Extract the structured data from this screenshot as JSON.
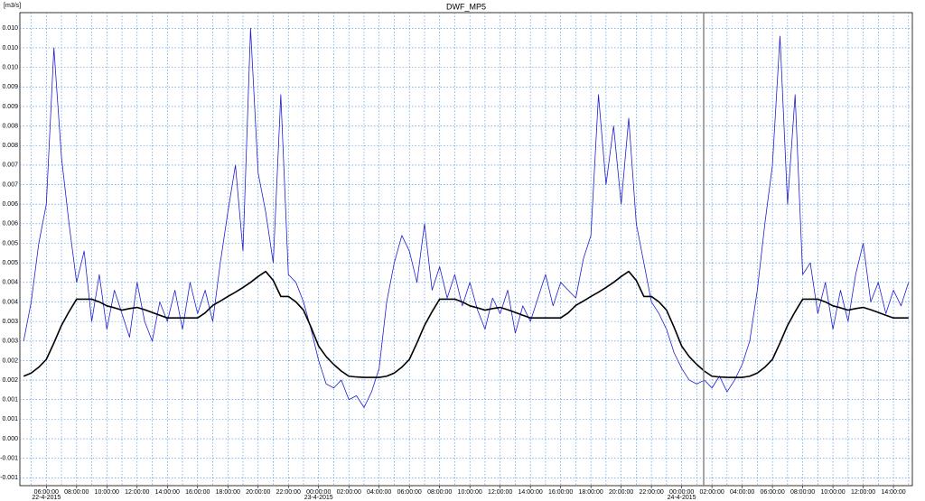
{
  "chart_data": {
    "type": "line",
    "title": "DWF_MP5",
    "ylabel": "[m3/s]",
    "x": [
      "2015-04-22 04:30",
      "2015-04-22 05:00",
      "2015-04-22 05:30",
      "2015-04-22 06:00",
      "2015-04-22 06:30",
      "2015-04-22 07:00",
      "2015-04-22 07:30",
      "2015-04-22 08:00",
      "2015-04-22 08:30",
      "2015-04-22 09:00",
      "2015-04-22 09:30",
      "2015-04-22 10:00",
      "2015-04-22 10:30",
      "2015-04-22 11:00",
      "2015-04-22 11:30",
      "2015-04-22 12:00",
      "2015-04-22 12:30",
      "2015-04-22 13:00",
      "2015-04-22 13:30",
      "2015-04-22 14:00",
      "2015-04-22 14:30",
      "2015-04-22 15:00",
      "2015-04-22 15:30",
      "2015-04-22 16:00",
      "2015-04-22 16:30",
      "2015-04-22 17:00",
      "2015-04-22 17:30",
      "2015-04-22 18:00",
      "2015-04-22 18:30",
      "2015-04-22 19:00",
      "2015-04-22 19:30",
      "2015-04-22 20:00",
      "2015-04-22 20:30",
      "2015-04-22 21:00",
      "2015-04-22 21:30",
      "2015-04-22 22:00",
      "2015-04-22 22:30",
      "2015-04-22 23:00",
      "2015-04-22 23:30",
      "2015-04-23 00:00",
      "2015-04-23 00:30",
      "2015-04-23 01:00",
      "2015-04-23 01:30",
      "2015-04-23 02:00",
      "2015-04-23 02:30",
      "2015-04-23 03:00",
      "2015-04-23 03:30",
      "2015-04-23 04:00",
      "2015-04-23 04:30",
      "2015-04-23 05:00",
      "2015-04-23 05:30",
      "2015-04-23 06:00",
      "2015-04-23 06:30",
      "2015-04-23 07:00",
      "2015-04-23 07:30",
      "2015-04-23 08:00",
      "2015-04-23 08:30",
      "2015-04-23 09:00",
      "2015-04-23 09:30",
      "2015-04-23 10:00",
      "2015-04-23 10:30",
      "2015-04-23 11:00",
      "2015-04-23 11:30",
      "2015-04-23 12:00",
      "2015-04-23 12:30",
      "2015-04-23 13:00",
      "2015-04-23 13:30",
      "2015-04-23 14:00",
      "2015-04-23 14:30",
      "2015-04-23 15:00",
      "2015-04-23 15:30",
      "2015-04-23 16:00",
      "2015-04-23 16:30",
      "2015-04-23 17:00",
      "2015-04-23 17:30",
      "2015-04-23 18:00",
      "2015-04-23 18:30",
      "2015-04-23 19:00",
      "2015-04-23 19:30",
      "2015-04-23 20:00",
      "2015-04-23 20:30",
      "2015-04-23 21:00",
      "2015-04-23 21:30",
      "2015-04-23 22:00",
      "2015-04-23 22:30",
      "2015-04-23 23:00",
      "2015-04-23 23:30",
      "2015-04-24 00:00",
      "2015-04-24 00:30",
      "2015-04-24 01:00",
      "2015-04-24 01:30",
      "2015-04-24 02:00",
      "2015-04-24 02:30",
      "2015-04-24 03:00",
      "2015-04-24 03:30",
      "2015-04-24 04:00",
      "2015-04-24 04:30",
      "2015-04-24 05:00",
      "2015-04-24 05:30",
      "2015-04-24 06:00",
      "2015-04-24 06:30",
      "2015-04-24 07:00",
      "2015-04-24 07:30",
      "2015-04-24 08:00",
      "2015-04-24 08:30",
      "2015-04-24 09:00",
      "2015-04-24 09:30",
      "2015-04-24 10:00",
      "2015-04-24 10:30",
      "2015-04-24 11:00",
      "2015-04-24 11:30",
      "2015-04-24 12:00",
      "2015-04-24 12:30",
      "2015-04-24 13:00",
      "2015-04-24 13:30",
      "2015-04-24 14:00",
      "2015-04-24 14:30",
      "2015-04-24 15:00"
    ],
    "series": [
      {
        "color": "#1f1fd0",
        "width": 0.8,
        "values": [
          0.0025,
          0.0035,
          0.005,
          0.006,
          0.01,
          0.0072,
          0.0055,
          0.004,
          0.0048,
          0.003,
          0.0042,
          0.0028,
          0.0038,
          0.0032,
          0.0026,
          0.004,
          0.003,
          0.0025,
          0.0035,
          0.003,
          0.0038,
          0.0028,
          0.004,
          0.0032,
          0.0038,
          0.003,
          0.0045,
          0.0058,
          0.007,
          0.0048,
          0.0105,
          0.0068,
          0.0058,
          0.0045,
          0.0088,
          0.0042,
          0.004,
          0.0035,
          0.0028,
          0.002,
          0.0014,
          0.0013,
          0.0015,
          0.001,
          0.0011,
          0.0008,
          0.0012,
          0.0018,
          0.0035,
          0.0045,
          0.0052,
          0.0048,
          0.004,
          0.0055,
          0.0038,
          0.0044,
          0.0036,
          0.0042,
          0.0034,
          0.004,
          0.0033,
          0.0028,
          0.0036,
          0.0032,
          0.0038,
          0.0027,
          0.0034,
          0.003,
          0.0036,
          0.0042,
          0.0034,
          0.004,
          0.0038,
          0.0036,
          0.0046,
          0.0052,
          0.0088,
          0.0065,
          0.008,
          0.006,
          0.0082,
          0.0055,
          0.0045,
          0.0035,
          0.0032,
          0.0028,
          0.0022,
          0.0018,
          0.0015,
          0.0014,
          0.0015,
          0.0013,
          0.0016,
          0.0012,
          0.0015,
          0.0019,
          0.0025,
          0.0038,
          0.0055,
          0.007,
          0.0103,
          0.006,
          0.0088,
          0.0042,
          0.0045,
          0.0032,
          0.004,
          0.0028,
          0.0038,
          0.003,
          0.0042,
          0.005,
          0.0035,
          0.004,
          0.0032,
          0.0038,
          0.0034,
          0.004
        ]
      },
      {
        "color": "#000000",
        "width": 1.6,
        "values": [
          0.0016,
          0.00168,
          0.00183,
          0.00203,
          0.00245,
          0.0029,
          0.00325,
          0.00357,
          0.00357,
          0.00357,
          0.0035,
          0.0034,
          0.00335,
          0.00329,
          0.00333,
          0.00336,
          0.0033,
          0.00323,
          0.00316,
          0.00309,
          0.00309,
          0.00309,
          0.00309,
          0.00309,
          0.00322,
          0.00341,
          0.00352,
          0.00364,
          0.00375,
          0.00387,
          0.004,
          0.00415,
          0.00428,
          0.00405,
          0.00364,
          0.00364,
          0.0035,
          0.00329,
          0.00285,
          0.00237,
          0.0021,
          0.0019,
          0.00173,
          0.0016,
          0.00158,
          0.00157,
          0.00157,
          0.00157,
          0.0016,
          0.00168,
          0.00183,
          0.00203,
          0.00245,
          0.0029,
          0.00325,
          0.00357,
          0.00357,
          0.00357,
          0.0035,
          0.0034,
          0.00335,
          0.00329,
          0.00333,
          0.00336,
          0.0033,
          0.00323,
          0.00316,
          0.00309,
          0.00309,
          0.00309,
          0.00309,
          0.00309,
          0.00322,
          0.00341,
          0.00352,
          0.00364,
          0.00375,
          0.00387,
          0.004,
          0.00415,
          0.00428,
          0.00405,
          0.00364,
          0.00364,
          0.0035,
          0.00329,
          0.00285,
          0.00237,
          0.0021,
          0.0019,
          0.00173,
          0.0016,
          0.00158,
          0.00157,
          0.00157,
          0.00157,
          0.0016,
          0.00168,
          0.00183,
          0.00203,
          0.00245,
          0.0029,
          0.00325,
          0.00357,
          0.00357,
          0.00357,
          0.0035,
          0.0034,
          0.00335,
          0.00329,
          0.00333,
          0.00336,
          0.0033,
          0.00323,
          0.00316,
          0.00309,
          0.00309,
          0.00309
        ]
      }
    ],
    "xlim": [
      "2015-04-22 04:15",
      "2015-04-24 15:15"
    ],
    "xticks": [
      {
        "value": "2015-04-22 06:00",
        "label": "06:00:00"
      },
      {
        "value": "2015-04-22 08:00",
        "label": "08:00:00"
      },
      {
        "value": "2015-04-22 10:00",
        "label": "10:00:00"
      },
      {
        "value": "2015-04-22 12:00",
        "label": "12:00:00"
      },
      {
        "value": "2015-04-22 14:00",
        "label": "14:00:00"
      },
      {
        "value": "2015-04-22 16:00",
        "label": "16:00:00"
      },
      {
        "value": "2015-04-22 18:00",
        "label": "18:00:00"
      },
      {
        "value": "2015-04-22 20:00",
        "label": "20:00:00"
      },
      {
        "value": "2015-04-22 22:00",
        "label": "22:00:00"
      },
      {
        "value": "2015-04-23 00:00",
        "label": "00:00:00"
      },
      {
        "value": "2015-04-23 02:00",
        "label": "02:00:00"
      },
      {
        "value": "2015-04-23 04:00",
        "label": "04:00:00"
      },
      {
        "value": "2015-04-23 06:00",
        "label": "06:00:00"
      },
      {
        "value": "2015-04-23 08:00",
        "label": "08:00:00"
      },
      {
        "value": "2015-04-23 10:00",
        "label": "10:00:00"
      },
      {
        "value": "2015-04-23 12:00",
        "label": "12:00:00"
      },
      {
        "value": "2015-04-23 14:00",
        "label": "14:00:00"
      },
      {
        "value": "2015-04-23 16:00",
        "label": "16:00:00"
      },
      {
        "value": "2015-04-23 18:00",
        "label": "18:00:00"
      },
      {
        "value": "2015-04-23 20:00",
        "label": "20:00:00"
      },
      {
        "value": "2015-04-23 22:00",
        "label": "22:00:00"
      },
      {
        "value": "2015-04-24 00:00",
        "label": "00:00:00"
      },
      {
        "value": "2015-04-24 02:00",
        "label": "02:00:00"
      },
      {
        "value": "2015-04-24 04:00",
        "label": "04:00:00"
      },
      {
        "value": "2015-04-24 06:00",
        "label": "06:00:00"
      },
      {
        "value": "2015-04-24 08:00",
        "label": "08:00:00"
      },
      {
        "value": "2015-04-24 10:00",
        "label": "10:00:00"
      },
      {
        "value": "2015-04-24 12:00",
        "label": "12:00:00"
      },
      {
        "value": "2015-04-24 14:00",
        "label": "14:00:00"
      }
    ],
    "date_labels": [
      {
        "value": "2015-04-22 06:00",
        "label": "22-4-2015"
      },
      {
        "value": "2015-04-23 00:00",
        "label": "23-4-2015"
      },
      {
        "value": "2015-04-24 00:00",
        "label": "24-4-2015"
      }
    ],
    "ylim": [
      -0.0012,
      0.0109
    ],
    "yticks": [
      {
        "value": -0.001,
        "label": "-0.001"
      },
      {
        "value": -0.0005,
        "label": "-0.001"
      },
      {
        "value": 0,
        "label": "0.000"
      },
      {
        "value": 0.0005,
        "label": "0.001"
      },
      {
        "value": 0.001,
        "label": "0.001"
      },
      {
        "value": 0.0015,
        "label": "0.002"
      },
      {
        "value": 0.002,
        "label": "0.002"
      },
      {
        "value": 0.0025,
        "label": "0.003"
      },
      {
        "value": 0.003,
        "label": "0.003"
      },
      {
        "value": 0.0035,
        "label": "0.004"
      },
      {
        "value": 0.004,
        "label": "0.004"
      },
      {
        "value": 0.0045,
        "label": "0.005"
      },
      {
        "value": 0.005,
        "label": "0.005"
      },
      {
        "value": 0.0055,
        "label": "0.006"
      },
      {
        "value": 0.006,
        "label": "0.006"
      },
      {
        "value": 0.0065,
        "label": "0.007"
      },
      {
        "value": 0.007,
        "label": "0.007"
      },
      {
        "value": 0.0075,
        "label": "0.008"
      },
      {
        "value": 0.008,
        "label": "0.008"
      },
      {
        "value": 0.0085,
        "label": "0.009"
      },
      {
        "value": 0.009,
        "label": "0.009"
      },
      {
        "value": 0.0095,
        "label": "0.010"
      },
      {
        "value": 0.01,
        "label": "0.010"
      },
      {
        "value": 0.0105,
        "label": "0.010"
      }
    ],
    "grid": true
  }
}
